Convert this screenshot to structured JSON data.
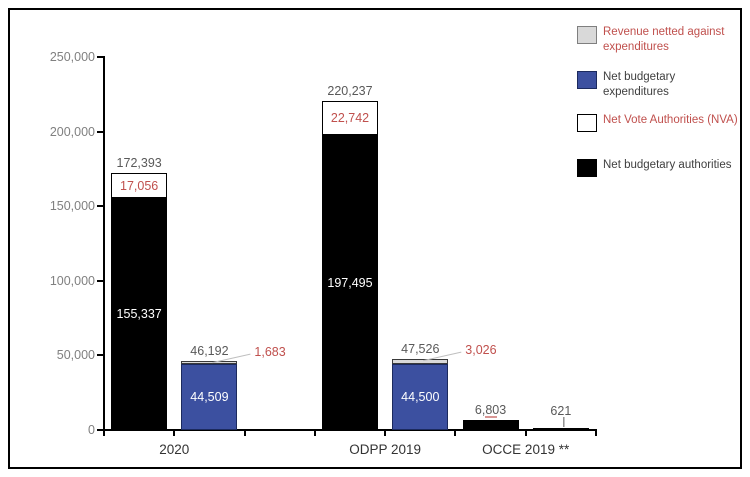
{
  "chart_data": {
    "type": "bar",
    "subtype": "stacked",
    "title": "",
    "grid": false,
    "legend_position": "top-right",
    "y_axis": {
      "min": 0,
      "max": 250000,
      "ticks": [
        {
          "value": 0,
          "label": "0"
        },
        {
          "value": 50000,
          "label": "50,000"
        },
        {
          "value": 100000,
          "label": "100,000"
        },
        {
          "value": 150000,
          "label": "150,000"
        },
        {
          "value": 200000,
          "label": "200,000"
        },
        {
          "value": 250000,
          "label": "250,000"
        }
      ]
    },
    "groups": [
      {
        "label": "2020",
        "slots": [
          0,
          1
        ]
      },
      {
        "label": "ODPP 2019",
        "slots": [
          3,
          4
        ]
      },
      {
        "label": "OCCE 2019 **",
        "slots": [
          5,
          6
        ]
      }
    ],
    "bars": [
      {
        "slot": 0,
        "group": "2020",
        "total": 172393,
        "total_label": "172,393",
        "segments": [
          {
            "series": "Net budgetary authorities",
            "value": 155337,
            "label": "155,337",
            "style": "black",
            "label_pos": "inside"
          },
          {
            "series": "Net Vote Authorities (NVA)",
            "value": 17056,
            "label": "17,056",
            "style": "white",
            "label_pos": "inside"
          }
        ]
      },
      {
        "slot": 1,
        "group": "2020",
        "total": 46192,
        "total_label": "46,192",
        "segments": [
          {
            "series": "Net budgetary expenditures",
            "value": 44509,
            "label": "44,509",
            "style": "blue",
            "label_pos": "inside"
          },
          {
            "series": "Revenue netted against expenditures",
            "value": 1683,
            "label": "1,683",
            "style": "gray",
            "label_pos": "callout"
          }
        ]
      },
      {
        "slot": 3,
        "group": "ODPP 2019",
        "total": 220237,
        "total_label": "220,237",
        "segments": [
          {
            "series": "Net budgetary authorities",
            "value": 197495,
            "label": "197,495",
            "style": "black",
            "label_pos": "inside"
          },
          {
            "series": "Net Vote Authorities (NVA)",
            "value": 22742,
            "label": "22,742",
            "style": "white",
            "label_pos": "inside"
          }
        ]
      },
      {
        "slot": 4,
        "group": "ODPP 2019",
        "total": 47526,
        "total_label": "47,526",
        "segments": [
          {
            "series": "Net budgetary expenditures",
            "value": 44500,
            "label": "44,500",
            "style": "blue",
            "label_pos": "inside"
          },
          {
            "series": "Revenue netted against expenditures",
            "value": 3026,
            "label": "3,026",
            "style": "gray",
            "label_pos": "callout"
          }
        ]
      },
      {
        "slot": 5,
        "group": "OCCE 2019 **",
        "total": 6803,
        "total_label": "6,803",
        "red_tick": true,
        "segments": [
          {
            "series": "Net budgetary authorities",
            "value": 6803,
            "label": "",
            "style": "black",
            "label_pos": "none"
          }
        ]
      },
      {
        "slot": 6,
        "group": "OCCE 2019 **",
        "total": 621,
        "total_label": "621",
        "v_leader": true,
        "segments": [
          {
            "series": "Net budgetary authorities",
            "value": 621,
            "label": "",
            "style": "black",
            "label_pos": "none"
          }
        ]
      }
    ],
    "legend": [
      {
        "label": "Revenue netted against expenditures",
        "style": "gray",
        "swatch_color": "#D9D9D9",
        "text_color": "#C0504D"
      },
      {
        "label": "Net budgetary expenditures",
        "style": "blue",
        "swatch_color": "#3C50A0",
        "text_color": "#404040"
      },
      {
        "label": "Net Vote Authorities (NVA)",
        "style": "white",
        "swatch_color": "#FFFFFF",
        "text_color": "#C0504D"
      },
      {
        "label": "Net budgetary authorities",
        "style": "black",
        "swatch_color": "#000000",
        "text_color": "#404040"
      }
    ],
    "colors": {
      "bar_blue": "#3C50A0",
      "bar_black": "#000000",
      "bar_gray": "#D9D9D9",
      "bar_white": "#FFFFFF",
      "value_red": "#C0504D",
      "total_gray": "#595959",
      "axis_label_gray": "#808080",
      "leader_gray": "#BFBFBF"
    }
  }
}
